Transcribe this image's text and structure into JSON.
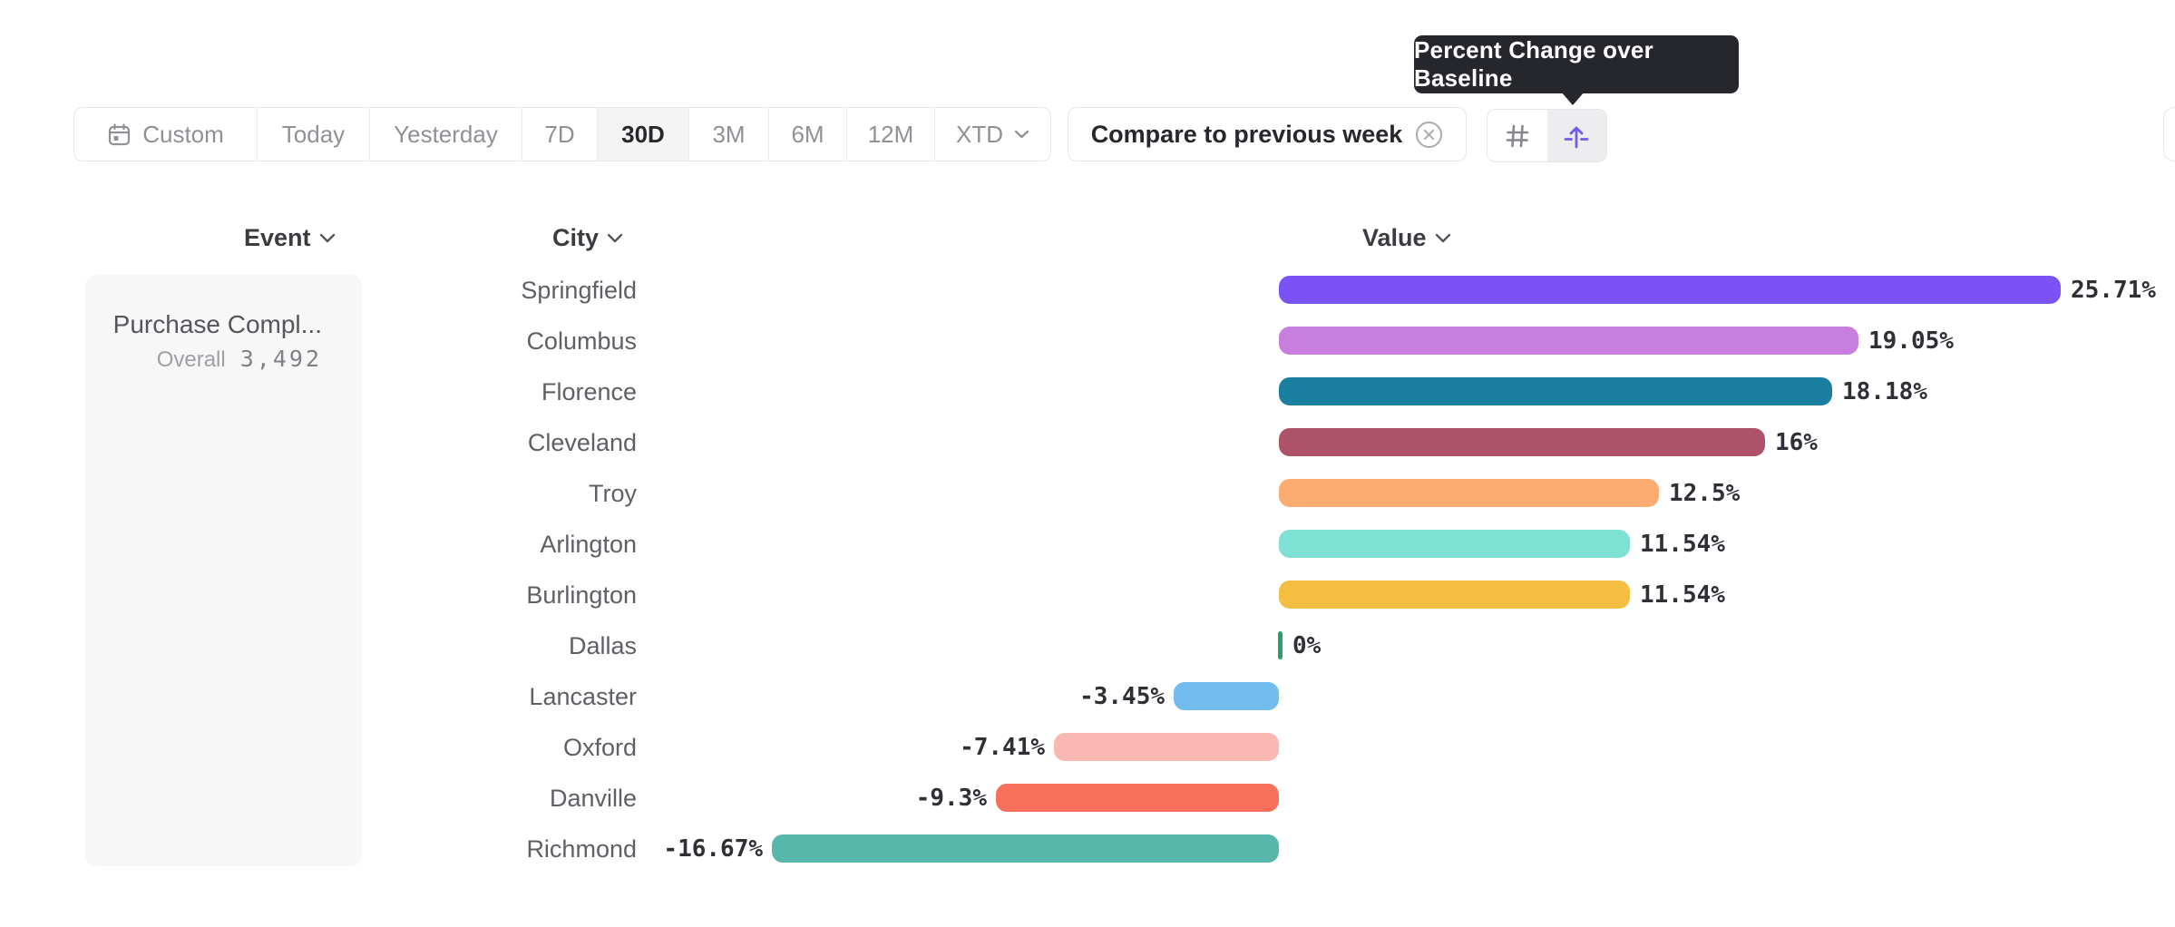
{
  "tooltip": {
    "text": "Percent Change over Baseline"
  },
  "toolbar": {
    "selected": "30D",
    "items": [
      {
        "label": "Custom",
        "icon": "calendar-icon"
      },
      {
        "label": "Today"
      },
      {
        "label": "Yesterday"
      },
      {
        "label": "7D"
      },
      {
        "label": "30D"
      },
      {
        "label": "3M"
      },
      {
        "label": "6M"
      },
      {
        "label": "12M"
      },
      {
        "label": "XTD",
        "chevron": true
      }
    ]
  },
  "compare_pill": {
    "label": "Compare to previous week",
    "icon": "circle-x-icon"
  },
  "view_toggle": {
    "options": [
      {
        "icon": "hash-grid-icon",
        "selected": false
      },
      {
        "icon": "arrow-up-from-baseline-icon",
        "selected": true
      }
    ]
  },
  "columns": [
    {
      "label": "Event"
    },
    {
      "label": "City"
    },
    {
      "label": "Value"
    }
  ],
  "event_panel": {
    "event_name": "Purchase Compl...",
    "metric_label": "Overall",
    "metric_value": "3,492"
  },
  "chart_data": {
    "type": "bar",
    "orientation": "horizontal",
    "title": "",
    "xlabel": "",
    "ylabel": "",
    "unit": "%",
    "baseline": 0,
    "grid": false,
    "legend": false,
    "categories": [
      "Springfield",
      "Columbus",
      "Florence",
      "Cleveland",
      "Troy",
      "Arlington",
      "Burlington",
      "Dallas",
      "Lancaster",
      "Oxford",
      "Danville",
      "Richmond"
    ],
    "values": [
      25.71,
      19.05,
      18.18,
      16,
      12.5,
      11.54,
      11.54,
      0,
      -3.45,
      -7.41,
      -9.3,
      -16.67
    ],
    "labels": [
      "25.71%",
      "19.05%",
      "18.18%",
      "16%",
      "12.5%",
      "11.54%",
      "11.54%",
      "0%",
      "-3.45%",
      "-7.41%",
      "-9.3%",
      "-16.67%"
    ],
    "colors": [
      "#7b52f5",
      "#c77ede",
      "#1a7f9e",
      "#ae5269",
      "#fcac70",
      "#7fe0d4",
      "#f3be41",
      "#2e9e63",
      "#72bdee",
      "#f9b9b2",
      "#f8705b",
      "#58b7ab"
    ]
  },
  "theme": {
    "tooltip_bg": "#26272c",
    "accent_purple": "#6f5cec",
    "border": "#e7e7e9",
    "selected_bg": "#f4f4f5",
    "value_text": "#2e3036",
    "muted_text": "#8f9196"
  }
}
